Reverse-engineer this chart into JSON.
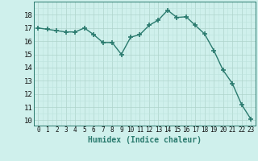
{
  "x": [
    0,
    1,
    2,
    3,
    4,
    5,
    6,
    7,
    8,
    9,
    10,
    11,
    12,
    13,
    14,
    15,
    16,
    17,
    18,
    19,
    20,
    21,
    22,
    23
  ],
  "y": [
    17.0,
    16.9,
    16.8,
    16.7,
    16.7,
    17.0,
    16.5,
    15.9,
    15.9,
    15.0,
    16.3,
    16.5,
    17.2,
    17.6,
    18.35,
    17.8,
    17.85,
    17.2,
    16.55,
    15.3,
    13.8,
    12.8,
    11.2,
    10.1
  ],
  "line_color": "#2a7a6e",
  "marker": "+",
  "markersize": 4,
  "markeredgewidth": 1.2,
  "linewidth": 1.0,
  "bg_color": "#cff0ec",
  "grid_color_major": "#aed4cc",
  "grid_color_minor": "#bde3dd",
  "xlabel": "Humidex (Indice chaleur)",
  "xlabel_fontsize": 7,
  "ytick_fontsize": 6.5,
  "xtick_fontsize": 5.5,
  "ylim": [
    9.6,
    19.0
  ],
  "xlim": [
    -0.5,
    23.5
  ],
  "yticks": [
    10,
    11,
    12,
    13,
    14,
    15,
    16,
    17,
    18
  ],
  "xticks": [
    0,
    1,
    2,
    3,
    4,
    5,
    6,
    7,
    8,
    9,
    10,
    11,
    12,
    13,
    14,
    15,
    16,
    17,
    18,
    19,
    20,
    21,
    22,
    23
  ]
}
